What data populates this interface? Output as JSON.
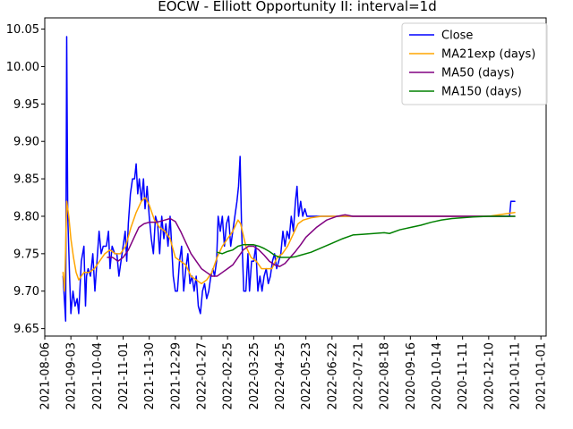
{
  "chart_data": {
    "type": "line",
    "title": "EOCW - Elliott Opportunity II: interval=1d",
    "xlabel": "",
    "ylabel": "",
    "x_tick_labels": [
      "2021-08-06",
      "2021-09-03",
      "2021-10-04",
      "2021-11-01",
      "2021-11-30",
      "2021-12-29",
      "2022-01-27",
      "2022-02-25",
      "2022-03-25",
      "2022-04-25",
      "2022-05-23",
      "2022-06-22",
      "2022-07-21",
      "2022-08-18",
      "2020-09-16",
      "2020-10-14",
      "2020-11-11",
      "2020-12-10",
      "2021-01-11",
      "2021-01-01"
    ],
    "y_tick_labels": [
      "9.65",
      "9.70",
      "9.75",
      "9.80",
      "9.85",
      "9.90",
      "9.95",
      "10.00",
      "10.05"
    ],
    "ylim": [
      9.64,
      10.065
    ],
    "xlim": [
      0,
      19.2
    ],
    "grid": false,
    "legend_position": "top-right",
    "series": [
      {
        "name": "Close",
        "color": "#0000ff",
        "points": [
          [
            0.7,
            9.72
          ],
          [
            0.75,
            9.69
          ],
          [
            0.8,
            9.66
          ],
          [
            0.84,
            10.04
          ],
          [
            0.88,
            9.8
          ],
          [
            0.95,
            9.72
          ],
          [
            1.0,
            9.67
          ],
          [
            1.08,
            9.7
          ],
          [
            1.16,
            9.68
          ],
          [
            1.24,
            9.69
          ],
          [
            1.3,
            9.67
          ],
          [
            1.4,
            9.74
          ],
          [
            1.5,
            9.76
          ],
          [
            1.56,
            9.68
          ],
          [
            1.6,
            9.72
          ],
          [
            1.66,
            9.73
          ],
          [
            1.75,
            9.72
          ],
          [
            1.84,
            9.75
          ],
          [
            1.92,
            9.7
          ],
          [
            2.0,
            9.74
          ],
          [
            2.08,
            9.78
          ],
          [
            2.16,
            9.75
          ],
          [
            2.24,
            9.76
          ],
          [
            2.36,
            9.76
          ],
          [
            2.44,
            9.78
          ],
          [
            2.5,
            9.73
          ],
          [
            2.58,
            9.76
          ],
          [
            2.68,
            9.75
          ],
          [
            2.76,
            9.75
          ],
          [
            2.84,
            9.72
          ],
          [
            2.92,
            9.74
          ],
          [
            3.0,
            9.76
          ],
          [
            3.08,
            9.78
          ],
          [
            3.14,
            9.74
          ],
          [
            3.2,
            9.79
          ],
          [
            3.28,
            9.83
          ],
          [
            3.36,
            9.85
          ],
          [
            3.44,
            9.85
          ],
          [
            3.5,
            9.87
          ],
          [
            3.56,
            9.83
          ],
          [
            3.62,
            9.85
          ],
          [
            3.7,
            9.82
          ],
          [
            3.78,
            9.85
          ],
          [
            3.84,
            9.81
          ],
          [
            3.92,
            9.84
          ],
          [
            4.0,
            9.8
          ],
          [
            4.08,
            9.77
          ],
          [
            4.16,
            9.75
          ],
          [
            4.24,
            9.8
          ],
          [
            4.32,
            9.79
          ],
          [
            4.4,
            9.75
          ],
          [
            4.48,
            9.8
          ],
          [
            4.56,
            9.77
          ],
          [
            4.64,
            9.79
          ],
          [
            4.72,
            9.76
          ],
          [
            4.8,
            9.8
          ],
          [
            4.86,
            9.76
          ],
          [
            4.92,
            9.72
          ],
          [
            5.0,
            9.7
          ],
          [
            5.08,
            9.7
          ],
          [
            5.16,
            9.74
          ],
          [
            5.24,
            9.76
          ],
          [
            5.32,
            9.7
          ],
          [
            5.4,
            9.73
          ],
          [
            5.48,
            9.75
          ],
          [
            5.56,
            9.71
          ],
          [
            5.64,
            9.72
          ],
          [
            5.72,
            9.7
          ],
          [
            5.8,
            9.72
          ],
          [
            5.88,
            9.68
          ],
          [
            5.96,
            9.67
          ],
          [
            6.04,
            9.7
          ],
          [
            6.12,
            9.71
          ],
          [
            6.2,
            9.69
          ],
          [
            6.28,
            9.7
          ],
          [
            6.36,
            9.72
          ],
          [
            6.44,
            9.73
          ],
          [
            6.5,
            9.72
          ],
          [
            6.58,
            9.74
          ],
          [
            6.64,
            9.8
          ],
          [
            6.72,
            9.78
          ],
          [
            6.8,
            9.8
          ],
          [
            6.88,
            9.76
          ],
          [
            6.96,
            9.79
          ],
          [
            7.04,
            9.8
          ],
          [
            7.12,
            9.76
          ],
          [
            7.2,
            9.78
          ],
          [
            7.28,
            9.8
          ],
          [
            7.36,
            9.82
          ],
          [
            7.42,
            9.84
          ],
          [
            7.48,
            9.88
          ],
          [
            7.54,
            9.78
          ],
          [
            7.62,
            9.7
          ],
          [
            7.7,
            9.7
          ],
          [
            7.78,
            9.75
          ],
          [
            7.84,
            9.7
          ],
          [
            7.92,
            9.74
          ],
          [
            8.0,
            9.74
          ],
          [
            8.08,
            9.76
          ],
          [
            8.16,
            9.7
          ],
          [
            8.24,
            9.72
          ],
          [
            8.32,
            9.7
          ],
          [
            8.4,
            9.72
          ],
          [
            8.48,
            9.73
          ],
          [
            8.56,
            9.71
          ],
          [
            8.64,
            9.72
          ],
          [
            8.72,
            9.74
          ],
          [
            8.8,
            9.75
          ],
          [
            8.88,
            9.73
          ],
          [
            8.96,
            9.74
          ],
          [
            9.04,
            9.75
          ],
          [
            9.12,
            9.78
          ],
          [
            9.2,
            9.76
          ],
          [
            9.28,
            9.78
          ],
          [
            9.36,
            9.77
          ],
          [
            9.44,
            9.8
          ],
          [
            9.52,
            9.78
          ],
          [
            9.6,
            9.82
          ],
          [
            9.66,
            9.84
          ],
          [
            9.72,
            9.8
          ],
          [
            9.8,
            9.82
          ],
          [
            9.88,
            9.8
          ],
          [
            9.96,
            9.81
          ],
          [
            10.04,
            9.8
          ],
          [
            10.2,
            9.8
          ],
          [
            10.5,
            9.8
          ],
          [
            11.0,
            9.8
          ],
          [
            12.0,
            9.8
          ],
          [
            13.0,
            9.8
          ],
          [
            14.0,
            9.8
          ],
          [
            15.0,
            9.8
          ],
          [
            16.0,
            9.8
          ],
          [
            17.0,
            9.8
          ],
          [
            17.8,
            9.8
          ],
          [
            17.85,
            9.82
          ],
          [
            18.0,
            9.82
          ]
        ]
      },
      {
        "name": "MA21exp (days)",
        "color": "#ffa500",
        "points": [
          [
            0.7,
            9.725
          ],
          [
            0.76,
            9.7
          ],
          [
            0.84,
            9.82
          ],
          [
            0.92,
            9.8
          ],
          [
            1.0,
            9.77
          ],
          [
            1.1,
            9.745
          ],
          [
            1.2,
            9.725
          ],
          [
            1.3,
            9.715
          ],
          [
            1.4,
            9.72
          ],
          [
            1.5,
            9.725
          ],
          [
            1.7,
            9.725
          ],
          [
            1.9,
            9.73
          ],
          [
            2.1,
            9.74
          ],
          [
            2.3,
            9.75
          ],
          [
            2.5,
            9.755
          ],
          [
            2.7,
            9.75
          ],
          [
            2.9,
            9.75
          ],
          [
            3.1,
            9.76
          ],
          [
            3.3,
            9.785
          ],
          [
            3.5,
            9.805
          ],
          [
            3.7,
            9.82
          ],
          [
            3.85,
            9.825
          ],
          [
            4.0,
            9.815
          ],
          [
            4.2,
            9.795
          ],
          [
            4.4,
            9.785
          ],
          [
            4.6,
            9.78
          ],
          [
            4.8,
            9.77
          ],
          [
            5.0,
            9.745
          ],
          [
            5.2,
            9.74
          ],
          [
            5.4,
            9.735
          ],
          [
            5.6,
            9.72
          ],
          [
            5.8,
            9.715
          ],
          [
            6.0,
            9.71
          ],
          [
            6.2,
            9.715
          ],
          [
            6.4,
            9.725
          ],
          [
            6.6,
            9.745
          ],
          [
            6.8,
            9.76
          ],
          [
            7.0,
            9.77
          ],
          [
            7.2,
            9.78
          ],
          [
            7.4,
            9.795
          ],
          [
            7.5,
            9.79
          ],
          [
            7.7,
            9.76
          ],
          [
            7.9,
            9.745
          ],
          [
            8.1,
            9.74
          ],
          [
            8.3,
            9.73
          ],
          [
            8.5,
            9.73
          ],
          [
            8.7,
            9.73
          ],
          [
            8.9,
            9.745
          ],
          [
            9.1,
            9.75
          ],
          [
            9.3,
            9.76
          ],
          [
            9.5,
            9.775
          ],
          [
            9.7,
            9.79
          ],
          [
            9.9,
            9.795
          ],
          [
            10.2,
            9.798
          ],
          [
            10.6,
            9.8
          ],
          [
            11.0,
            9.8
          ],
          [
            12.0,
            9.8
          ],
          [
            13.0,
            9.8
          ],
          [
            14.0,
            9.8
          ],
          [
            15.0,
            9.8
          ],
          [
            16.0,
            9.8
          ],
          [
            17.0,
            9.8
          ],
          [
            18.0,
            9.805
          ]
        ]
      },
      {
        "name": "MA50 (days)",
        "color": "#800080",
        "points": [
          [
            2.4,
            9.745
          ],
          [
            2.6,
            9.745
          ],
          [
            2.8,
            9.74
          ],
          [
            3.0,
            9.745
          ],
          [
            3.2,
            9.755
          ],
          [
            3.4,
            9.77
          ],
          [
            3.6,
            9.785
          ],
          [
            3.8,
            9.79
          ],
          [
            4.0,
            9.792
          ],
          [
            4.2,
            9.792
          ],
          [
            4.4,
            9.793
          ],
          [
            4.6,
            9.795
          ],
          [
            4.8,
            9.797
          ],
          [
            5.0,
            9.793
          ],
          [
            5.2,
            9.78
          ],
          [
            5.4,
            9.765
          ],
          [
            5.6,
            9.75
          ],
          [
            5.8,
            9.74
          ],
          [
            6.0,
            9.73
          ],
          [
            6.2,
            9.725
          ],
          [
            6.4,
            9.72
          ],
          [
            6.6,
            9.72
          ],
          [
            6.8,
            9.725
          ],
          [
            7.0,
            9.73
          ],
          [
            7.2,
            9.735
          ],
          [
            7.4,
            9.745
          ],
          [
            7.6,
            9.755
          ],
          [
            7.8,
            9.76
          ],
          [
            8.0,
            9.76
          ],
          [
            8.2,
            9.755
          ],
          [
            8.4,
            9.748
          ],
          [
            8.6,
            9.74
          ],
          [
            8.8,
            9.735
          ],
          [
            9.0,
            9.733
          ],
          [
            9.2,
            9.737
          ],
          [
            9.4,
            9.745
          ],
          [
            9.6,
            9.753
          ],
          [
            9.8,
            9.762
          ],
          [
            10.0,
            9.772
          ],
          [
            10.4,
            9.785
          ],
          [
            10.8,
            9.795
          ],
          [
            11.2,
            9.8
          ],
          [
            11.5,
            9.802
          ],
          [
            11.8,
            9.8
          ],
          [
            12.5,
            9.8
          ],
          [
            13.0,
            9.8
          ],
          [
            14.0,
            9.8
          ],
          [
            15.0,
            9.8
          ],
          [
            16.0,
            9.8
          ],
          [
            17.0,
            9.8
          ],
          [
            18.0,
            9.8
          ]
        ]
      },
      {
        "name": "MA150 (days)",
        "color": "#008000",
        "points": [
          [
            6.6,
            9.752
          ],
          [
            6.8,
            9.75
          ],
          [
            7.0,
            9.753
          ],
          [
            7.2,
            9.755
          ],
          [
            7.4,
            9.76
          ],
          [
            7.6,
            9.762
          ],
          [
            7.8,
            9.762
          ],
          [
            8.0,
            9.762
          ],
          [
            8.2,
            9.76
          ],
          [
            8.4,
            9.757
          ],
          [
            8.6,
            9.753
          ],
          [
            8.8,
            9.748
          ],
          [
            9.0,
            9.745
          ],
          [
            9.2,
            9.745
          ],
          [
            9.4,
            9.745
          ],
          [
            9.6,
            9.746
          ],
          [
            9.8,
            9.748
          ],
          [
            10.2,
            9.752
          ],
          [
            10.6,
            9.758
          ],
          [
            11.0,
            9.764
          ],
          [
            11.4,
            9.77
          ],
          [
            11.8,
            9.775
          ],
          [
            12.2,
            9.776
          ],
          [
            12.6,
            9.777
          ],
          [
            13.0,
            9.778
          ],
          [
            13.2,
            9.777
          ],
          [
            13.6,
            9.782
          ],
          [
            14.0,
            9.785
          ],
          [
            14.4,
            9.788
          ],
          [
            14.8,
            9.792
          ],
          [
            15.2,
            9.795
          ],
          [
            15.6,
            9.797
          ],
          [
            16.0,
            9.798
          ],
          [
            16.4,
            9.799
          ],
          [
            17.0,
            9.8
          ],
          [
            18.0,
            9.8
          ]
        ]
      }
    ]
  }
}
